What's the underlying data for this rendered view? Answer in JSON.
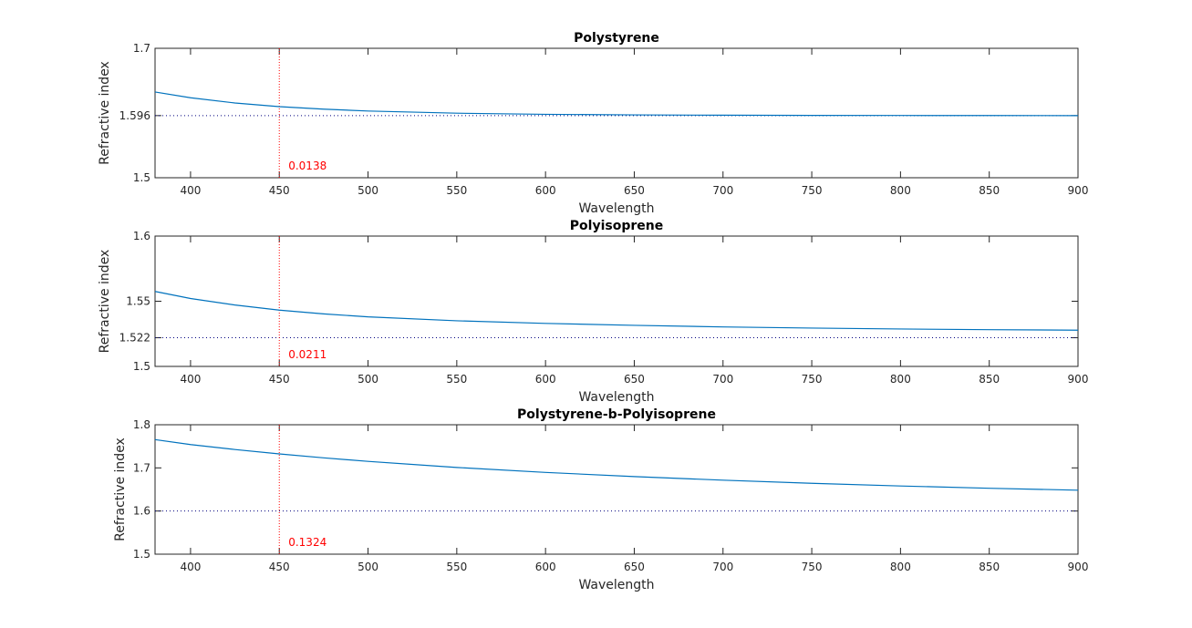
{
  "colors": {
    "series": "#0072bd",
    "marker": "#ff0000",
    "reference": "#00007f",
    "axes": "#262626"
  },
  "chart_data": [
    {
      "type": "line",
      "title": "Polystyrene",
      "xlabel": "Wavelength",
      "ylabel": "Refractive index",
      "xlim": [
        380,
        900
      ],
      "ylim": [
        1.5,
        1.7
      ],
      "xticks": [
        400,
        450,
        500,
        550,
        600,
        650,
        700,
        750,
        800,
        850,
        900
      ],
      "yticks": [
        1.5,
        1.596,
        1.7
      ],
      "ytick_labels": [
        "1.5",
        "1.596",
        "1.7"
      ],
      "reference_line": 1.596,
      "marker_x": 450,
      "annotation": "0.0138",
      "series": [
        {
          "x": [
            380,
            400,
            425,
            450,
            475,
            500,
            550,
            600,
            650,
            700,
            750,
            800,
            850,
            900
          ],
          "values": [
            1.6325,
            1.6236,
            1.6155,
            1.6099,
            1.606,
            1.6031,
            1.5997,
            1.598,
            1.5971,
            1.5966,
            1.5963,
            1.5962,
            1.5961,
            1.596
          ]
        }
      ]
    },
    {
      "type": "line",
      "title": "Polyisoprene",
      "xlabel": "Wavelength",
      "ylabel": "Refractive index",
      "xlim": [
        380,
        900
      ],
      "ylim": [
        1.5,
        1.6
      ],
      "xticks": [
        400,
        450,
        500,
        550,
        600,
        650,
        700,
        750,
        800,
        850,
        900
      ],
      "yticks": [
        1.5,
        1.522,
        1.55,
        1.6
      ],
      "ytick_labels": [
        "1.5",
        "1.522",
        "1.55",
        "1.6"
      ],
      "reference_line": 1.522,
      "marker_x": 450,
      "annotation": "0.0211",
      "series": [
        {
          "x": [
            380,
            400,
            425,
            450,
            475,
            500,
            550,
            600,
            650,
            700,
            750,
            800,
            850,
            900
          ],
          "values": [
            1.5575,
            1.5521,
            1.5471,
            1.5432,
            1.5403,
            1.538,
            1.535,
            1.533,
            1.5315,
            1.5303,
            1.5294,
            1.5287,
            1.5282,
            1.5278
          ]
        }
      ]
    },
    {
      "type": "line",
      "title": "Polystyrene-b-Polyisoprene",
      "xlabel": "Wavelength",
      "ylabel": "Refractive index",
      "xlim": [
        380,
        900
      ],
      "ylim": [
        1.5,
        1.8
      ],
      "xticks": [
        400,
        450,
        500,
        550,
        600,
        650,
        700,
        750,
        800,
        850,
        900
      ],
      "yticks": [
        1.5,
        1.6,
        1.7,
        1.8
      ],
      "ytick_labels": [
        "1.5",
        "1.6",
        "1.7",
        "1.8"
      ],
      "reference_line": 1.6,
      "marker_x": 450,
      "annotation": "0.1324",
      "series": [
        {
          "x": [
            380,
            400,
            425,
            450,
            475,
            500,
            550,
            600,
            650,
            700,
            750,
            800,
            850,
            900
          ],
          "values": [
            1.7655,
            1.754,
            1.7426,
            1.7324,
            1.7233,
            1.7151,
            1.701,
            1.6895,
            1.6798,
            1.6715,
            1.6643,
            1.6581,
            1.6528,
            1.6483
          ]
        }
      ]
    }
  ]
}
